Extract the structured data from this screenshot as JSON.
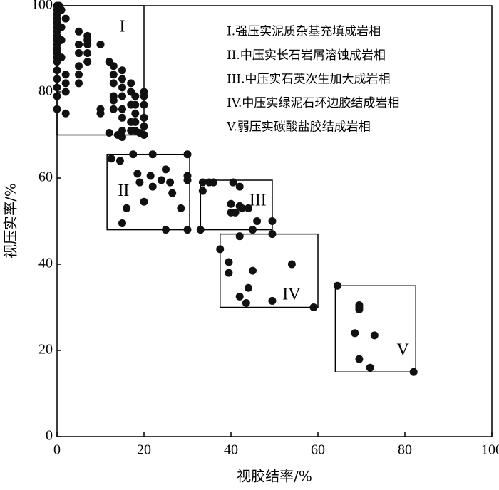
{
  "chart_data": {
    "type": "scatter",
    "x_label": "视胶结率/%",
    "y_label": "视压实率/%",
    "xlim": [
      0,
      100
    ],
    "ylim": [
      0,
      100
    ],
    "xticks": [
      0,
      20,
      40,
      60,
      80,
      100
    ],
    "yticks": [
      0,
      20,
      40,
      60,
      80,
      100
    ],
    "color": "#111111",
    "legend": [
      "I.强压实泥质杂基充填成岩相",
      "II.中压实长石岩屑溶蚀成岩相",
      "III.中压实石英次生加大成岩相",
      "IV.中压实绿泥石环边胶结成岩相",
      "V.弱压实碳酸盐胶结成岩相"
    ],
    "regions": [
      {
        "label": "I",
        "xlim": [
          0,
          20
        ],
        "ylim": [
          70,
          100
        ]
      },
      {
        "label": "II",
        "xlim": [
          11.5,
          30.5
        ],
        "ylim": [
          48,
          65.5
        ]
      },
      {
        "label": "III",
        "xlim": [
          33,
          49.5
        ],
        "ylim": [
          48,
          59.5
        ]
      },
      {
        "label": "IV",
        "xlim": [
          37.5,
          60
        ],
        "ylim": [
          30,
          47
        ]
      },
      {
        "label": "V",
        "xlim": [
          64,
          82.5
        ],
        "ylim": [
          15,
          35
        ]
      }
    ],
    "x": [
      0,
      0,
      0,
      0,
      0,
      0,
      0,
      0,
      0,
      0,
      0,
      0,
      0,
      0,
      0,
      0,
      0,
      0,
      0,
      0.5,
      1,
      1,
      1,
      1,
      2,
      2,
      2,
      2,
      2,
      5,
      5,
      5,
      5,
      5,
      5,
      7,
      7,
      7,
      7,
      7,
      10,
      10,
      10,
      12,
      12,
      13,
      13,
      13,
      13,
      13,
      13,
      14,
      15,
      15,
      15,
      15,
      15,
      15,
      15,
      15,
      17,
      17,
      17,
      17,
      17,
      18,
      18,
      18,
      18,
      18,
      19,
      20,
      20,
      20,
      20,
      20,
      20,
      12.5,
      14.5,
      17.5,
      22,
      30,
      18.5,
      21.5,
      25,
      26,
      30,
      30,
      24,
      19,
      22,
      26.5,
      20,
      16,
      28.5,
      15,
      25,
      30,
      33.5,
      35,
      36,
      40.5,
      42,
      33.5,
      40,
      42,
      42.5,
      44,
      40,
      41,
      46,
      49.5,
      33,
      45,
      49.5,
      42,
      37.5,
      39.5,
      39.5,
      45,
      54,
      44,
      42,
      43.5,
      49.5,
      59,
      64.5,
      69.5,
      69.5,
      69.5,
      68.5,
      73,
      69.5,
      72,
      82
    ],
    "values": [
      100,
      99,
      98,
      97,
      96,
      95,
      94,
      93,
      92,
      91,
      90,
      89,
      88,
      87,
      85,
      83,
      81,
      79,
      76,
      100,
      99,
      95,
      92,
      88,
      97,
      84,
      82,
      80,
      75,
      94,
      91,
      89,
      86,
      84,
      82,
      93,
      92,
      91,
      89,
      87,
      91,
      76,
      75,
      87,
      70.5,
      86,
      84,
      82,
      79,
      78,
      76,
      70,
      85,
      83,
      81,
      79,
      76,
      74,
      71,
      69.5,
      82,
      80,
      77,
      73,
      71,
      79,
      77,
      75,
      73,
      71,
      70.5,
      80,
      79,
      77,
      74,
      72,
      70,
      64.5,
      64,
      65.5,
      65.5,
      65.5,
      61,
      60.5,
      62,
      59,
      60.5,
      59.5,
      59.5,
      59,
      58,
      56.5,
      54.5,
      53,
      53,
      49.5,
      48,
      48,
      59,
      59,
      59,
      59,
      58,
      57,
      54,
      53.5,
      53,
      53,
      52,
      52,
      50,
      50,
      48,
      48,
      47,
      46.5,
      43.5,
      40.5,
      38,
      38.5,
      40,
      34.5,
      32.5,
      31,
      31.5,
      30,
      35,
      30.5,
      30,
      29.5,
      24,
      23.5,
      18,
      16,
      15
    ]
  }
}
